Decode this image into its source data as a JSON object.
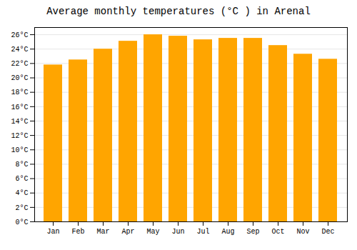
{
  "chart_data": {
    "type": "bar",
    "title": "Average monthly temperatures (°C ) in Arenal",
    "categories": [
      "Jan",
      "Feb",
      "Mar",
      "Apr",
      "May",
      "Jun",
      "Jul",
      "Aug",
      "Sep",
      "Oct",
      "Nov",
      "Dec"
    ],
    "values": [
      21.8,
      22.5,
      24.0,
      25.1,
      26.0,
      25.8,
      25.3,
      25.5,
      25.5,
      24.5,
      23.3,
      22.6
    ],
    "color": "#FFA500",
    "ylim": [
      0,
      27
    ],
    "yticks": [
      {
        "value": 0,
        "label": "0°C"
      },
      {
        "value": 2,
        "label": "2°C"
      },
      {
        "value": 4,
        "label": "4°C"
      },
      {
        "value": 6,
        "label": "6°C"
      },
      {
        "value": 8,
        "label": "8°C"
      },
      {
        "value": 10,
        "label": "10°C"
      },
      {
        "value": 12,
        "label": "12°C"
      },
      {
        "value": 14,
        "label": "14°C"
      },
      {
        "value": 16,
        "label": "16°C"
      },
      {
        "value": 18,
        "label": "18°C"
      },
      {
        "value": 20,
        "label": "20°C"
      },
      {
        "value": 22,
        "label": "22°C"
      },
      {
        "value": 24,
        "label": "24°C"
      },
      {
        "value": 26,
        "label": "26°C"
      }
    ],
    "grid": true
  }
}
